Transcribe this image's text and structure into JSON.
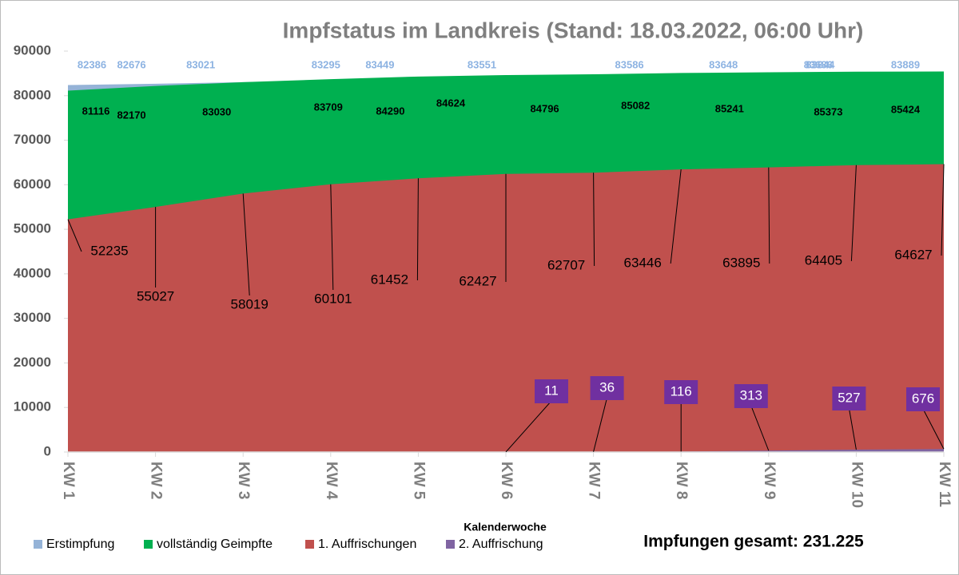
{
  "chart_data": {
    "type": "area",
    "title": "Impfstatus im Landkreis (Stand: 18.03.2022, 06:00 Uhr)",
    "x_label": "Kalenderwoche",
    "annotation": "Impfungen gesamt: 231.225",
    "categories": [
      "KW 1",
      "KW 2",
      "KW 3",
      "KW 4",
      "KW 5",
      "KW 6",
      "KW 7",
      "KW 8",
      "KW 9",
      "KW 10",
      "KW 11"
    ],
    "ylim": [
      0,
      90000
    ],
    "yticks": [
      0,
      10000,
      20000,
      30000,
      40000,
      50000,
      60000,
      70000,
      80000,
      90000
    ],
    "series": [
      {
        "name": "Erstimpfung",
        "color": "#95b3d7",
        "values": [
          82386,
          82676,
          83021,
          83295,
          83449,
          83551,
          83586,
          83648,
          83686,
          83844,
          83889
        ]
      },
      {
        "name": "vollständig Geimpfte",
        "color": "#00b050",
        "values": [
          81116,
          82170,
          83030,
          83709,
          84290,
          84624,
          84796,
          85082,
          85241,
          85373,
          85424
        ]
      },
      {
        "name": "1. Auffrischungen",
        "color": "#c0504d",
        "values": [
          52235,
          55027,
          58019,
          60101,
          61452,
          62427,
          62707,
          63446,
          63895,
          64405,
          64627
        ]
      },
      {
        "name": "2. Auffrischung",
        "color": "#8064a2",
        "values": [
          null,
          null,
          null,
          null,
          null,
          11,
          36,
          116,
          313,
          527,
          676
        ]
      }
    ]
  }
}
